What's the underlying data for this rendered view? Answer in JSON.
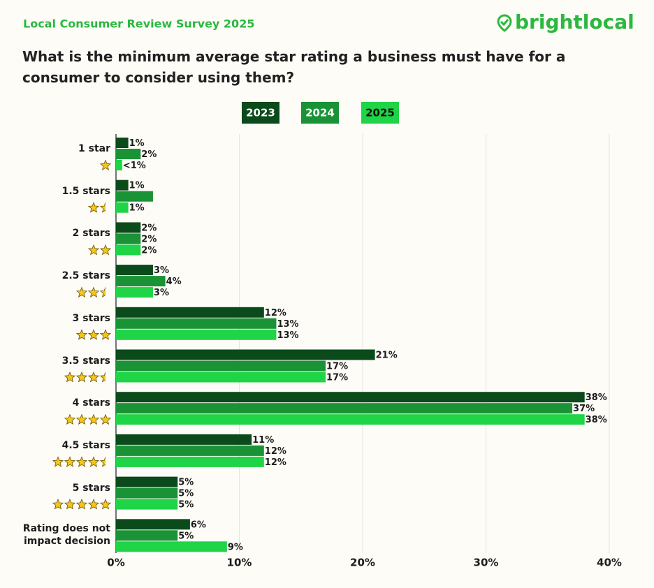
{
  "header": {
    "survey": "Local Consumer Review Survey 2025",
    "brand": "brightlocal"
  },
  "chart_data": {
    "type": "hbar",
    "title": "What is the minimum average star rating a business must have for a consumer to consider using them?",
    "categories": [
      "1 star",
      "1.5 stars",
      "2 stars",
      "2.5 stars",
      "3 stars",
      "3.5 stars",
      "4 stars",
      "4.5 stars",
      "5 stars",
      "Rating does not impact decision"
    ],
    "ratings": [
      1,
      1.5,
      2,
      2.5,
      3,
      3.5,
      4,
      4.5,
      5,
      null
    ],
    "series": [
      {
        "name": "2023",
        "color": "#0b4a1b",
        "values": [
          1,
          1,
          2,
          3,
          12,
          21,
          38,
          11,
          5,
          6
        ],
        "value_labels": [
          "1%",
          "1%",
          "2%",
          "3%",
          "12%",
          "21%",
          "38%",
          "11%",
          "5%",
          "6%"
        ]
      },
      {
        "name": "2024",
        "color": "#1a9236",
        "values": [
          2,
          3,
          2,
          4,
          13,
          17,
          37,
          12,
          5,
          5
        ],
        "value_labels": [
          "2%",
          null,
          "2%",
          "4%",
          "13%",
          "17%",
          "37%",
          "12%",
          "5%",
          "5%"
        ]
      },
      {
        "name": "2025",
        "color": "#1fd446",
        "values": [
          0.5,
          1,
          2,
          3,
          13,
          17,
          38,
          12,
          5,
          9
        ],
        "value_labels": [
          "<1%",
          "1%",
          "2%",
          "3%",
          "13%",
          "17%",
          "38%",
          "12%",
          "5%",
          "9%"
        ]
      }
    ],
    "xlim": [
      0,
      40
    ],
    "xticks": [
      {
        "value": 0,
        "label": "0%"
      },
      {
        "value": 10,
        "label": "10%"
      },
      {
        "value": 20,
        "label": "20%"
      },
      {
        "value": 30,
        "label": "30%"
      },
      {
        "value": 40,
        "label": "40%"
      }
    ],
    "grid": true
  }
}
